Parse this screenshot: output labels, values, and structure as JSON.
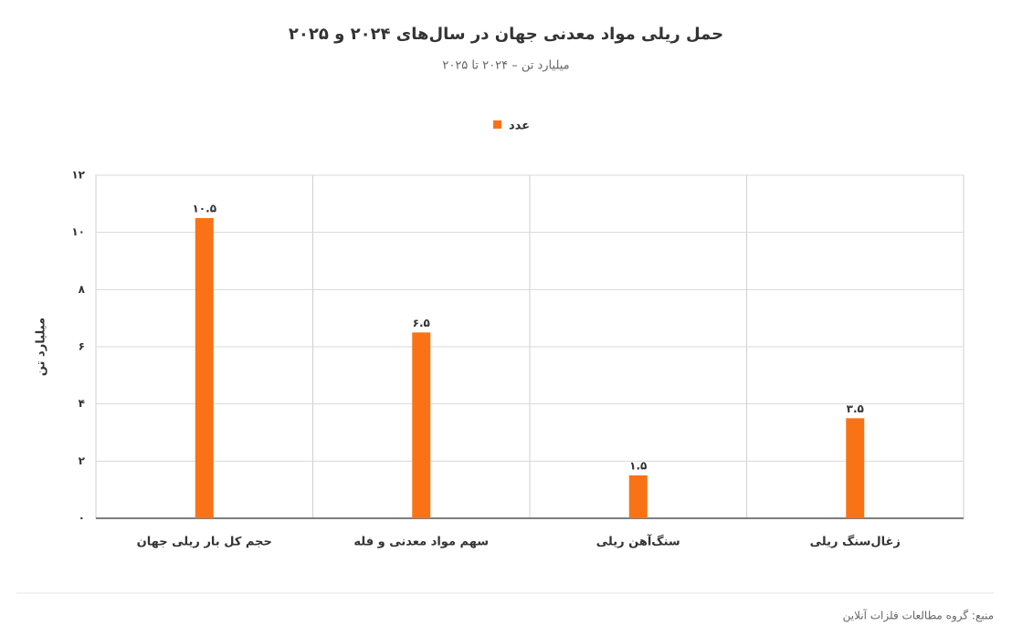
{
  "chart_data": {
    "type": "bar",
    "title": "حمل ریلی مواد معدنی جهان در سال‌های ۲۰۲۴ و ۲۰۲۵",
    "subtitle": "میلیارد تن – ۲۰۲۴ تا ۲۰۲۵",
    "y_label": "میلیارد تن",
    "source": "منبع: گروه مطالعات فلزات آنلاین",
    "categories": [
      "حجم کل بار ریلی جهان",
      "سهم مواد معدنی و فله",
      "سنگ‌آهن ریلی",
      "زغال‌سنگ ریلی"
    ],
    "series": [
      {
        "name": "عدد",
        "color": "#f97316",
        "values": [
          10.5,
          6.5,
          1.5,
          3.5
        ],
        "value_labels": [
          "۱۰.۵",
          "۶.۵",
          "۱.۵",
          "۳.۵"
        ]
      }
    ],
    "ylim": [
      0,
      12
    ],
    "yticks": [
      {
        "value": 0,
        "label": "۰"
      },
      {
        "value": 2,
        "label": "۲"
      },
      {
        "value": 4,
        "label": "۴"
      },
      {
        "value": 6,
        "label": "۶"
      },
      {
        "value": 8,
        "label": "۸"
      },
      {
        "value": 10,
        "label": "۱۰"
      },
      {
        "value": 12,
        "label": "۱۲"
      }
    ],
    "grid": true
  }
}
